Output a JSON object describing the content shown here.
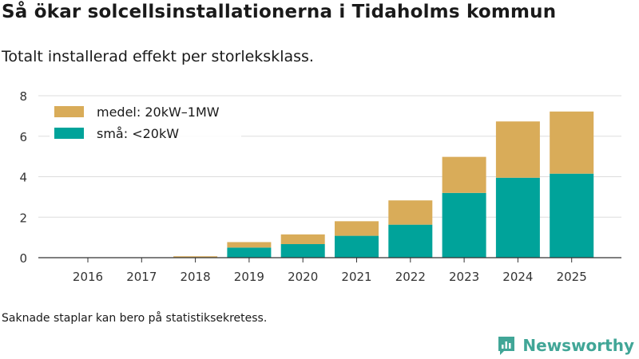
{
  "header": {
    "title": "Så ökar solcellsinstallationerna i Tidaholms kommun",
    "subtitle": "Totalt installerad effekt per storleksklass."
  },
  "footer": {
    "note": "Saknade staplar kan bero på statistiksekretess.",
    "brand": "Newsworthy",
    "brand_icon": "newsworthy-logo-icon"
  },
  "colors": {
    "medel": "#d9ac59",
    "sma": "#00a39a",
    "axis": "#333333",
    "grid": "#dddddd",
    "brand": "#41a697"
  },
  "chart_data": {
    "type": "bar",
    "stacked": true,
    "categories": [
      "2016",
      "2017",
      "2018",
      "2019",
      "2020",
      "2021",
      "2022",
      "2023",
      "2024",
      "2025"
    ],
    "series": [
      {
        "name": "små: <20kW",
        "key": "sma",
        "values": [
          0,
          0,
          0.02,
          0.5,
          0.67,
          1.08,
          1.63,
          3.2,
          3.95,
          4.15
        ]
      },
      {
        "name": "medel: 20kW–1MW",
        "key": "medel",
        "values": [
          0,
          0,
          0.05,
          0.27,
          0.48,
          0.72,
          1.2,
          1.78,
          2.78,
          3.07
        ]
      }
    ],
    "legend": [
      {
        "label": "medel: 20kW–1MW",
        "key": "medel"
      },
      {
        "label": "små: <20kW",
        "key": "sma"
      }
    ],
    "legend_position": "top-left",
    "yticks": [
      0,
      2,
      4,
      6,
      8
    ],
    "ylim": [
      0,
      8
    ],
    "xlabel": "",
    "ylabel": "",
    "grid": true
  }
}
